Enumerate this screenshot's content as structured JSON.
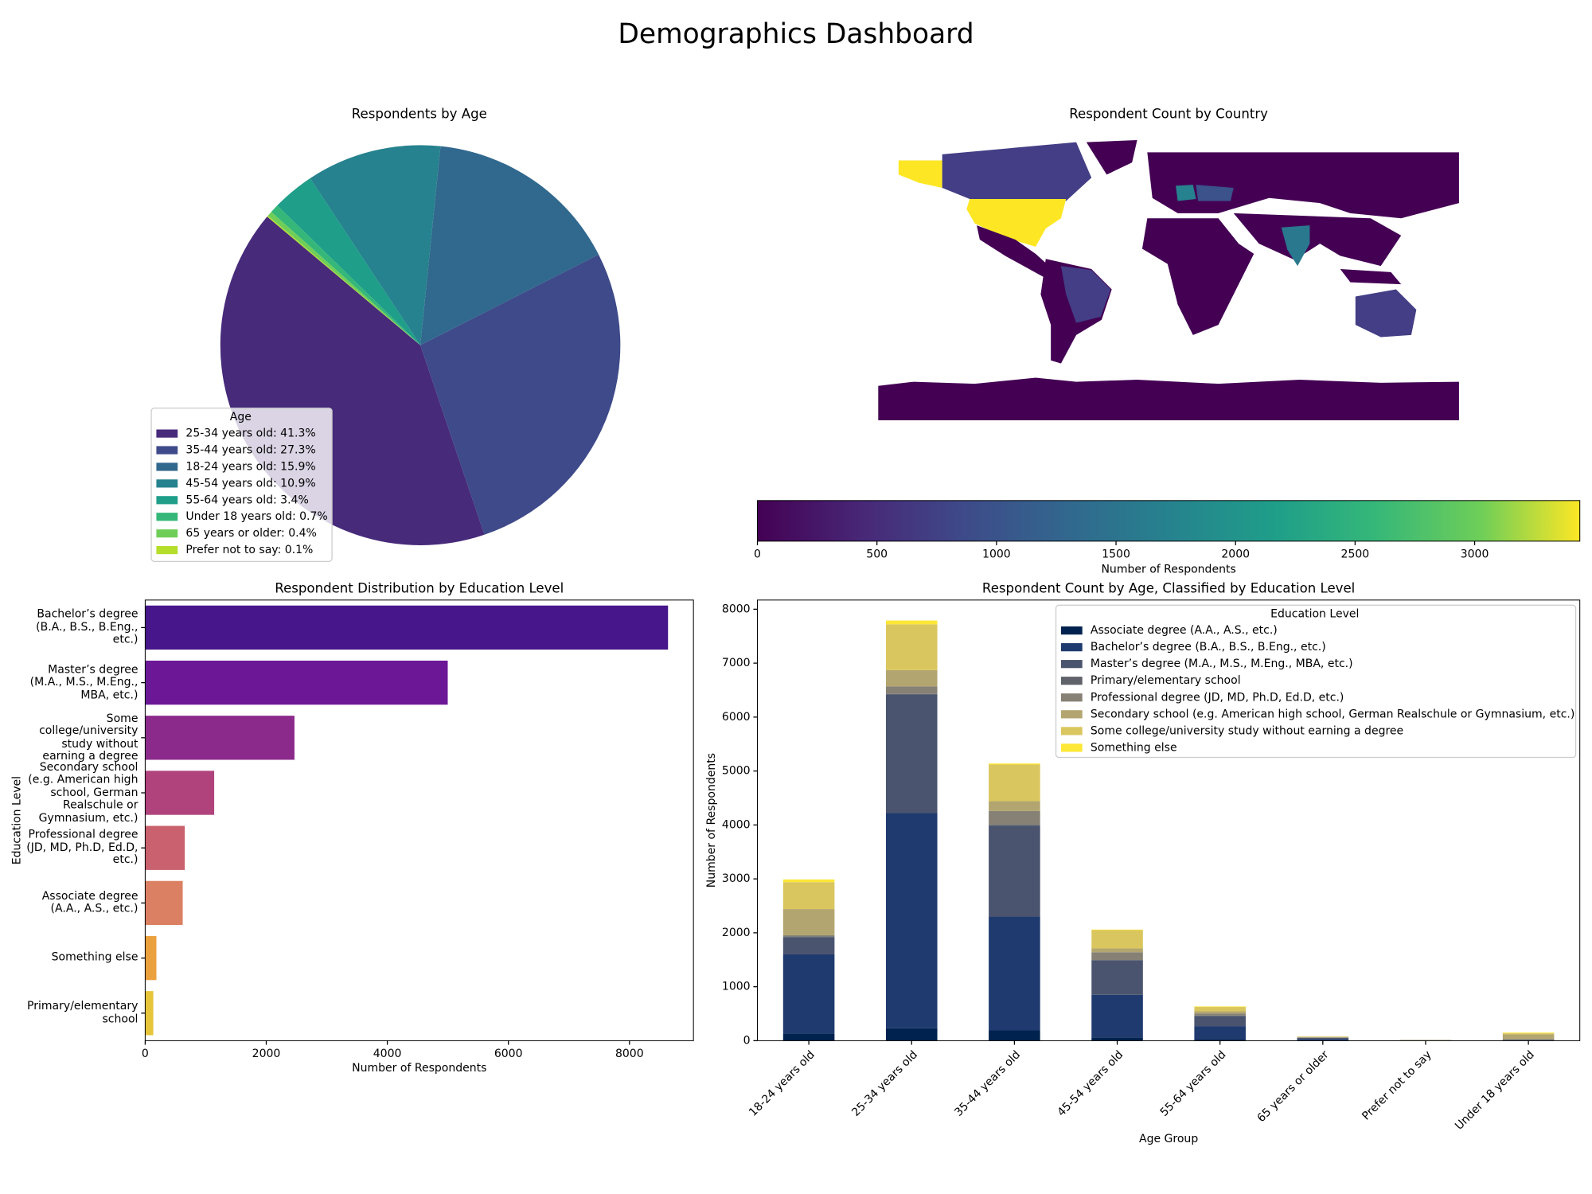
{
  "title": "Demographics Dashboard",
  "chart_data": [
    {
      "type": "pie",
      "title": "Respondents by Age",
      "legend_title": "Age",
      "categories": [
        "25-34 years old: 41.3%",
        "35-44 years old: 27.3%",
        "18-24 years old: 15.9%",
        "45-54 years old: 10.9%",
        "55-64 years old: 3.4%",
        "Under 18 years old: 0.7%",
        "65 years or older: 0.4%",
        "Prefer not to say: 0.1%"
      ],
      "values": [
        41.3,
        27.3,
        15.9,
        10.9,
        3.4,
        0.7,
        0.4,
        0.1
      ],
      "colors": [
        "#472a7a",
        "#3e4a89",
        "#31688e",
        "#26828e",
        "#1f9e89",
        "#35b779",
        "#6ece58",
        "#b5de2b"
      ]
    },
    {
      "type": "choropleth",
      "title": "Respondent Count by Country",
      "xlabel": "Number of Respondents",
      "xlim": [
        0,
        3440
      ],
      "xticks": [
        0,
        500,
        1000,
        1500,
        2000,
        2500,
        3000
      ]
    },
    {
      "type": "barh",
      "title": "Respondent Distribution by Education Level",
      "xlabel": "Number of Respondents",
      "ylabel": "Education Level",
      "categories": [
        "Bachelor’s degree\n(B.A., B.S., B.Eng.,\netc.)",
        "Master’s degree\n(M.A., M.S., M.Eng.,\nMBA, etc.)",
        "Some\ncollege/university\nstudy without\nearning a degree",
        "Secondary school\n(e.g. American high\nschool, German\nRealschule or\nGymnasium, etc.)",
        "Professional degree\n(JD, MD, Ph.D, Ed.D,\netc.)",
        "Associate degree\n(A.A., A.S., etc.)",
        "Something else",
        "Primary/elementary\nschool"
      ],
      "values": [
        8637,
        4998,
        2466,
        1140,
        654,
        620,
        185,
        134
      ],
      "colors": [
        "#47168a",
        "#6c1896",
        "#8c2a8c",
        "#b0437c",
        "#c9616f",
        "#dc8063",
        "#eba13e",
        "#e6c53a"
      ],
      "xlim": [
        0,
        9057
      ],
      "xticks": [
        0,
        2000,
        4000,
        6000,
        8000
      ]
    },
    {
      "type": "stacked_bar",
      "title": "Respondent Count by Age, Classified by Education Level",
      "xlabel": "Age Group",
      "ylabel": "Number of Respondents",
      "legend_title": "Education Level",
      "categories": [
        "18-24 years old",
        "25-34 years old",
        "35-44 years old",
        "45-54 years old",
        "55-64 years old",
        "65 years or older",
        "Prefer not to say",
        "Under 18 years old"
      ],
      "series": [
        {
          "name": "Associate degree (A.A., A.S., etc.)",
          "color": "#00224e",
          "values": [
            130,
            230,
            190,
            60,
            20,
            5,
            1,
            2
          ]
        },
        {
          "name": "Bachelor’s degree (B.A., B.S., B.Eng., etc.)",
          "color": "#1f3a6e",
          "values": [
            1470,
            3990,
            2110,
            790,
            250,
            25,
            5,
            8
          ]
        },
        {
          "name": "Master’s degree (M.A., M.S., M.Eng., MBA, etc.)",
          "color": "#4b546e",
          "values": [
            320,
            2200,
            1690,
            640,
            190,
            20,
            3,
            5
          ]
        },
        {
          "name": "Primary/elementary school",
          "color": "#5f6268",
          "values": [
            15,
            10,
            10,
            5,
            5,
            2,
            1,
            10
          ]
        },
        {
          "name": "Professional degree (JD, MD, Ph.D, Ed.D, etc.)",
          "color": "#868174",
          "values": [
            20,
            140,
            260,
            145,
            40,
            10,
            1,
            3
          ]
        },
        {
          "name": "Secondary school (e.g. American high school, German Realschule or Gymnasium, etc.)",
          "color": "#b3a56f",
          "values": [
            485,
            300,
            180,
            70,
            40,
            8,
            2,
            90
          ]
        },
        {
          "name": "Some college/university study without earning a degree",
          "color": "#dac65e",
          "values": [
            500,
            850,
            680,
            340,
            80,
            8,
            1,
            20
          ]
        },
        {
          "name": "Something else",
          "color": "#fde737",
          "values": [
            50,
            70,
            20,
            10,
            10,
            2,
            1,
            12
          ]
        }
      ],
      "ylim": [
        0,
        8170
      ],
      "yticks": [
        0,
        1000,
        2000,
        3000,
        4000,
        5000,
        6000,
        7000,
        8000
      ]
    }
  ]
}
